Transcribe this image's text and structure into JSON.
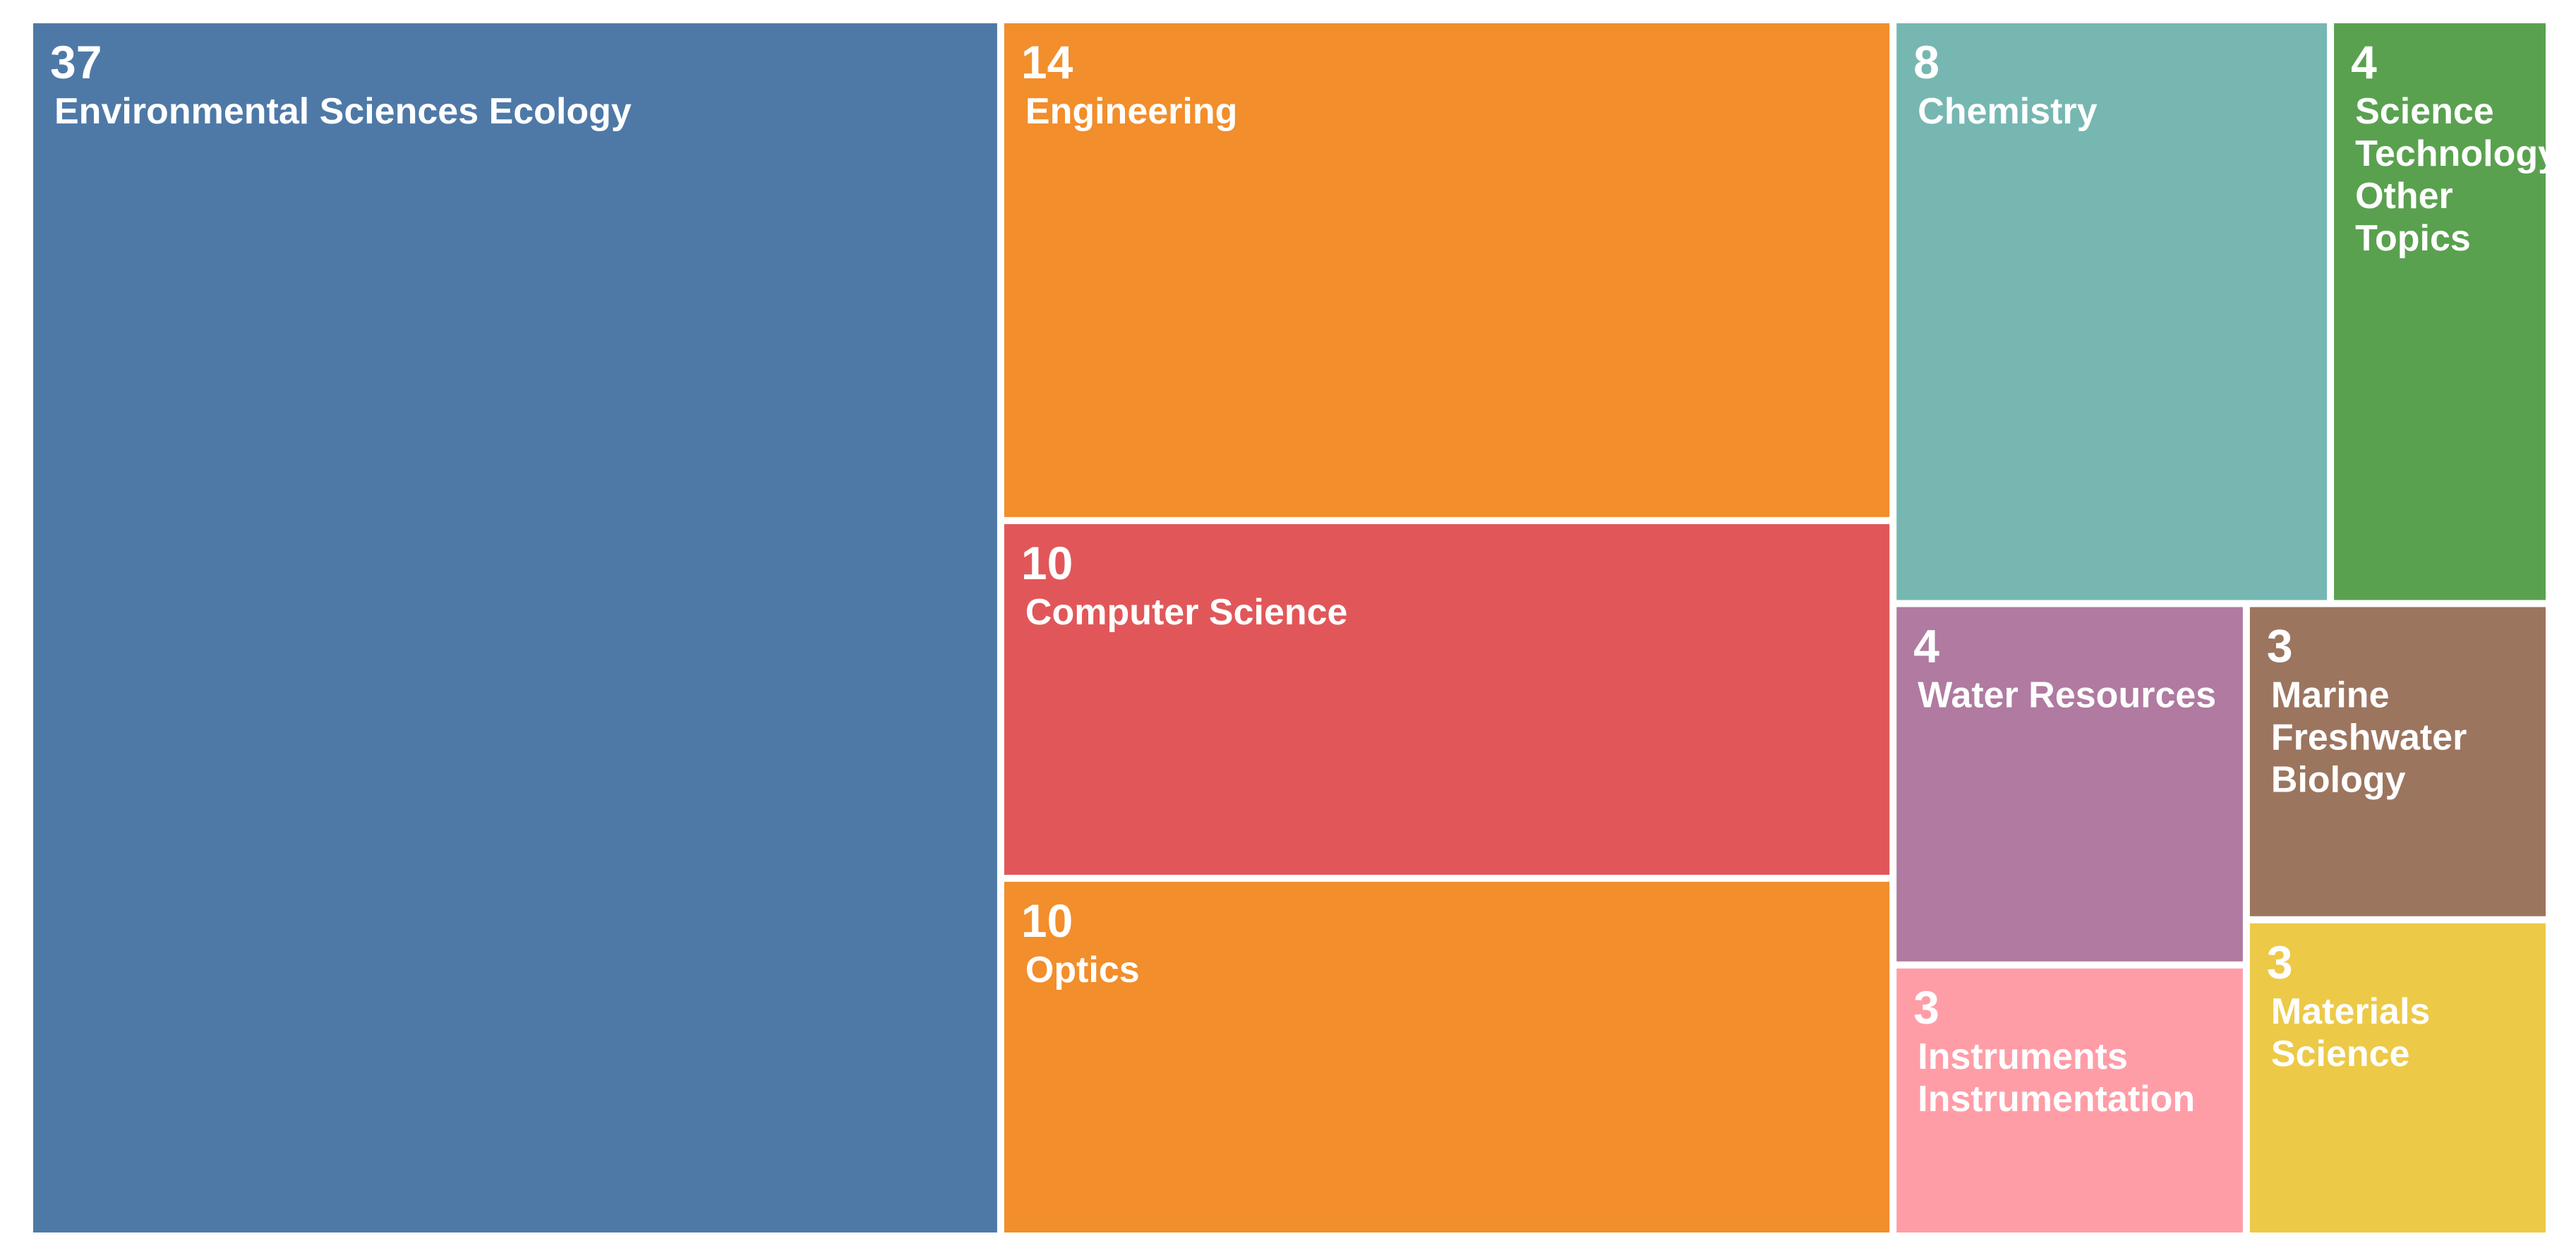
{
  "chart_data": {
    "type": "treemap",
    "title": "",
    "items": [
      {
        "label": "Environmental Sciences Ecology",
        "lines": [
          "Environmental Sciences Ecology"
        ],
        "value": 37,
        "color": "#4E79A7"
      },
      {
        "label": "Engineering",
        "lines": [
          "Engineering"
        ],
        "value": 14,
        "color": "#F28E2B"
      },
      {
        "label": "Computer Science",
        "lines": [
          "Computer Science"
        ],
        "value": 10,
        "color": "#E15759"
      },
      {
        "label": "Optics",
        "lines": [
          "Optics"
        ],
        "value": 10,
        "color": "#F28E2B"
      },
      {
        "label": "Chemistry",
        "lines": [
          "Chemistry"
        ],
        "value": 8,
        "color": "#76B7B2"
      },
      {
        "label": "Science Technology Other Topics",
        "lines": [
          "Science",
          "Technology",
          "Other",
          "Topics"
        ],
        "value": 4,
        "color": "#59A14F"
      },
      {
        "label": "Water Resources",
        "lines": [
          "Water Resources"
        ],
        "value": 4,
        "color": "#B07AA1"
      },
      {
        "label": "Marine Freshwater Biology",
        "lines": [
          "Marine",
          "Freshwater",
          "Biology"
        ],
        "value": 3,
        "color": "#9C755F"
      },
      {
        "label": "Instruments Instrumentation",
        "lines": [
          "Instruments",
          "Instrumentation"
        ],
        "value": 3,
        "color": "#FF9DA7"
      },
      {
        "label": "Materials Science",
        "lines": [
          "Materials",
          "Science"
        ],
        "value": 3,
        "color": "#EDC948"
      }
    ]
  }
}
